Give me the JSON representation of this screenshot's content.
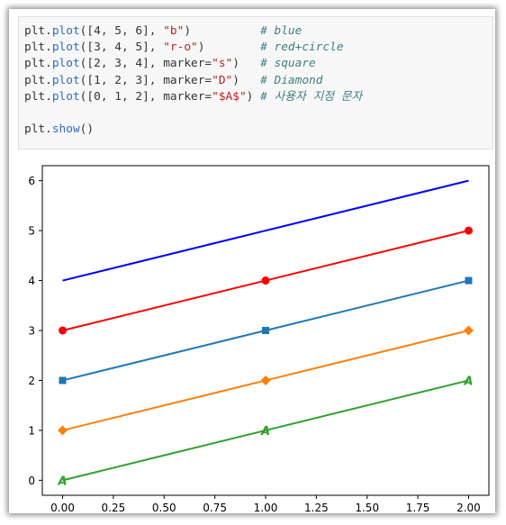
{
  "code": {
    "lines": [
      {
        "parts": [
          {
            "t": "plt",
            "c": "kw"
          },
          {
            "t": ".",
            "c": "kw"
          },
          {
            "t": "plot",
            "c": "fn"
          },
          {
            "t": "([",
            "c": "kw"
          },
          {
            "t": "4",
            "c": "num"
          },
          {
            "t": ", ",
            "c": "kw"
          },
          {
            "t": "5",
            "c": "num"
          },
          {
            "t": ", ",
            "c": "kw"
          },
          {
            "t": "6",
            "c": "num"
          },
          {
            "t": "], ",
            "c": "kw"
          },
          {
            "t": "\"b\"",
            "c": "str"
          },
          {
            "t": ")          ",
            "c": "kw"
          },
          {
            "t": "# blue",
            "c": "com"
          }
        ]
      },
      {
        "parts": [
          {
            "t": "plt",
            "c": "kw"
          },
          {
            "t": ".",
            "c": "kw"
          },
          {
            "t": "plot",
            "c": "fn"
          },
          {
            "t": "([",
            "c": "kw"
          },
          {
            "t": "3",
            "c": "num"
          },
          {
            "t": ", ",
            "c": "kw"
          },
          {
            "t": "4",
            "c": "num"
          },
          {
            "t": ", ",
            "c": "kw"
          },
          {
            "t": "5",
            "c": "num"
          },
          {
            "t": "], ",
            "c": "kw"
          },
          {
            "t": "\"r-o\"",
            "c": "str"
          },
          {
            "t": ")        ",
            "c": "kw"
          },
          {
            "t": "# red+circle",
            "c": "com"
          }
        ]
      },
      {
        "parts": [
          {
            "t": "plt",
            "c": "kw"
          },
          {
            "t": ".",
            "c": "kw"
          },
          {
            "t": "plot",
            "c": "fn"
          },
          {
            "t": "([",
            "c": "kw"
          },
          {
            "t": "2",
            "c": "num"
          },
          {
            "t": ", ",
            "c": "kw"
          },
          {
            "t": "3",
            "c": "num"
          },
          {
            "t": ", ",
            "c": "kw"
          },
          {
            "t": "4",
            "c": "num"
          },
          {
            "t": "], marker=",
            "c": "kw"
          },
          {
            "t": "\"s\"",
            "c": "str"
          },
          {
            "t": ")   ",
            "c": "kw"
          },
          {
            "t": "# square",
            "c": "com"
          }
        ]
      },
      {
        "parts": [
          {
            "t": "plt",
            "c": "kw"
          },
          {
            "t": ".",
            "c": "kw"
          },
          {
            "t": "plot",
            "c": "fn"
          },
          {
            "t": "([",
            "c": "kw"
          },
          {
            "t": "1",
            "c": "num"
          },
          {
            "t": ", ",
            "c": "kw"
          },
          {
            "t": "2",
            "c": "num"
          },
          {
            "t": ", ",
            "c": "kw"
          },
          {
            "t": "3",
            "c": "num"
          },
          {
            "t": "], marker=",
            "c": "kw"
          },
          {
            "t": "\"D\"",
            "c": "str"
          },
          {
            "t": ")   ",
            "c": "kw"
          },
          {
            "t": "# Diamond",
            "c": "com"
          }
        ]
      },
      {
        "parts": [
          {
            "t": "plt",
            "c": "kw"
          },
          {
            "t": ".",
            "c": "kw"
          },
          {
            "t": "plot",
            "c": "fn"
          },
          {
            "t": "([",
            "c": "kw"
          },
          {
            "t": "0",
            "c": "num"
          },
          {
            "t": ", ",
            "c": "kw"
          },
          {
            "t": "1",
            "c": "num"
          },
          {
            "t": ", ",
            "c": "kw"
          },
          {
            "t": "2",
            "c": "num"
          },
          {
            "t": "], marker=",
            "c": "kw"
          },
          {
            "t": "\"$A$\"",
            "c": "str"
          },
          {
            "t": ") ",
            "c": "kw"
          },
          {
            "t": "# 사용자 지정 문자",
            "c": "com"
          }
        ]
      },
      {
        "parts": []
      },
      {
        "parts": [
          {
            "t": "plt",
            "c": "kw"
          },
          {
            "t": ".",
            "c": "kw"
          },
          {
            "t": "show",
            "c": "fn"
          },
          {
            "t": "()",
            "c": "kw"
          }
        ]
      }
    ]
  },
  "chart_data": {
    "type": "line",
    "x": [
      0,
      1,
      2
    ],
    "xticks": [
      "0.00",
      "0.25",
      "0.50",
      "0.75",
      "1.00",
      "1.25",
      "1.50",
      "1.75",
      "2.00"
    ],
    "yticks": [
      "0",
      "1",
      "2",
      "3",
      "4",
      "5",
      "6"
    ],
    "xlim": [
      -0.1,
      2.1
    ],
    "ylim": [
      -0.3,
      6.3
    ],
    "grid": false,
    "title": "",
    "xlabel": "",
    "ylabel": "",
    "series": [
      {
        "values": [
          4,
          5,
          6
        ],
        "color": "#0000ff",
        "marker": "none"
      },
      {
        "values": [
          3,
          4,
          5
        ],
        "color": "#ff0000",
        "marker": "circle"
      },
      {
        "values": [
          2,
          3,
          4
        ],
        "color": "#1f77b4",
        "marker": "square"
      },
      {
        "values": [
          1,
          2,
          3
        ],
        "color": "#ff7f0e",
        "marker": "diamond"
      },
      {
        "values": [
          0,
          1,
          2
        ],
        "color": "#2ca02c",
        "marker": "A"
      }
    ]
  }
}
